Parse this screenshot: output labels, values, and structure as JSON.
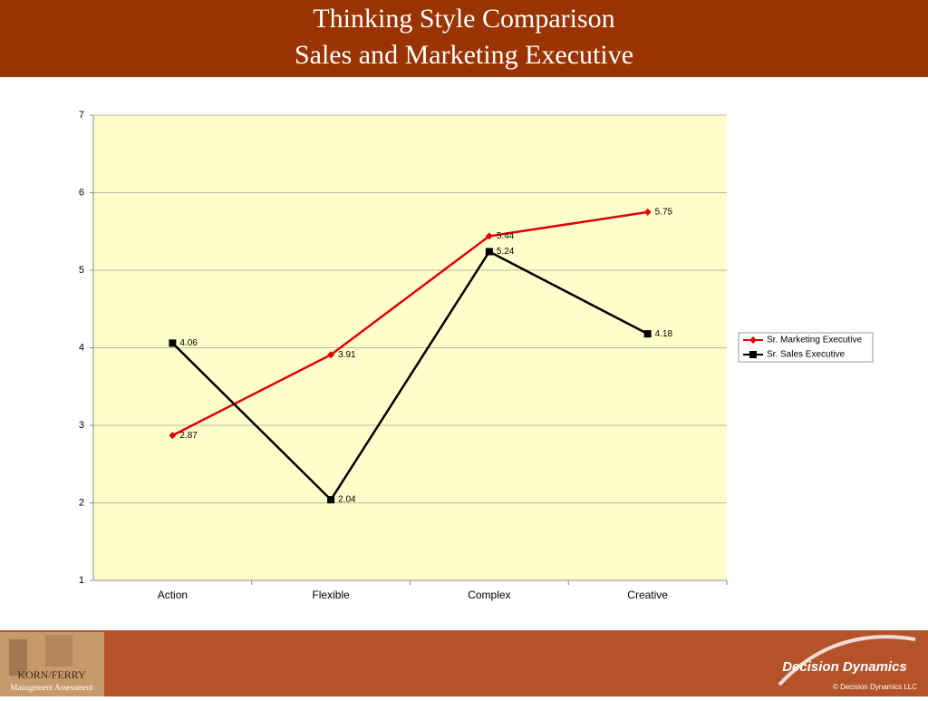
{
  "chart_data": {
    "type": "line",
    "title": "Thinking Style Comparison",
    "subtitle": "Sales and Marketing Executive",
    "categories": [
      "Action",
      "Flexible",
      "Complex",
      "Creative"
    ],
    "series": [
      {
        "name": "Sr. Marketing Executive",
        "color": "#e00000",
        "marker": "diamond",
        "values": [
          2.87,
          3.91,
          5.44,
          5.75
        ]
      },
      {
        "name": "Sr. Sales Executive",
        "color": "#000000",
        "marker": "square",
        "values": [
          4.06,
          2.04,
          5.24,
          4.18
        ]
      }
    ],
    "ylim": [
      1,
      7
    ],
    "yticks": [
      1,
      2,
      3,
      4,
      5,
      6,
      7
    ],
    "grid": true,
    "legend": "right"
  },
  "footer": {
    "left_brand": "KORN/FERRY",
    "left_sub": "Management Assessment",
    "right_brand": "Decision Dynamics",
    "copyright": "© Decision Dynamics LLC"
  }
}
